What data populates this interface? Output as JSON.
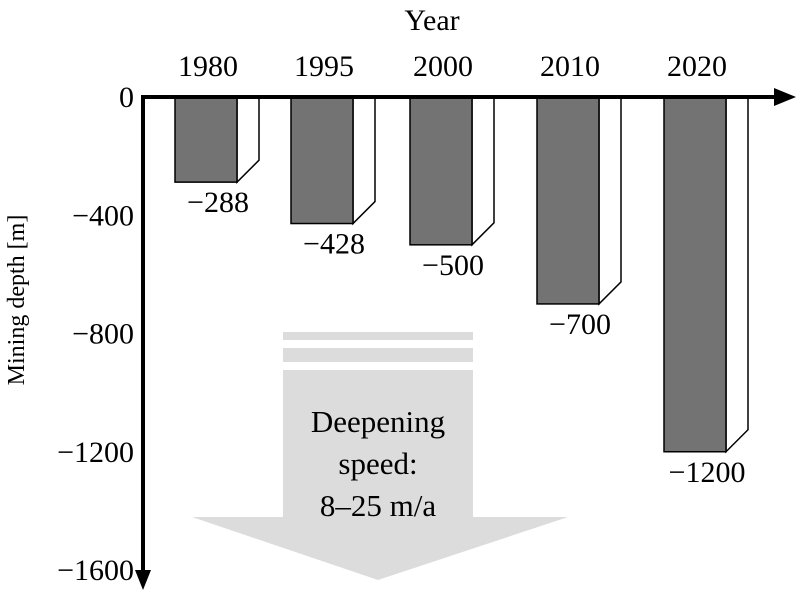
{
  "chart_data": {
    "type": "bar",
    "title": "",
    "xlabel": "Year",
    "ylabel": "Mining depth [m]",
    "categories": [
      "1980",
      "1995",
      "2000",
      "2010",
      "2020"
    ],
    "values": [
      -288,
      -428,
      -500,
      -700,
      -1200
    ],
    "value_labels": [
      "−288",
      "−428",
      "−500",
      "−700",
      "−1200"
    ],
    "y_ticks": [
      0,
      -400,
      -800,
      -1200,
      -1600
    ],
    "y_tick_labels": [
      "0",
      "−400",
      "−800",
      "−1200",
      "−1600"
    ],
    "ylim": [
      -1600,
      0
    ],
    "grid": false,
    "legend": "none",
    "annotation": {
      "lines": [
        "Deepening",
        "speed:",
        "8–25 m/a"
      ]
    },
    "colors": {
      "bar_front": "#737373",
      "bar_side": "#ffffff",
      "arrow": "#dcdcdc",
      "axis": "#000000"
    }
  }
}
